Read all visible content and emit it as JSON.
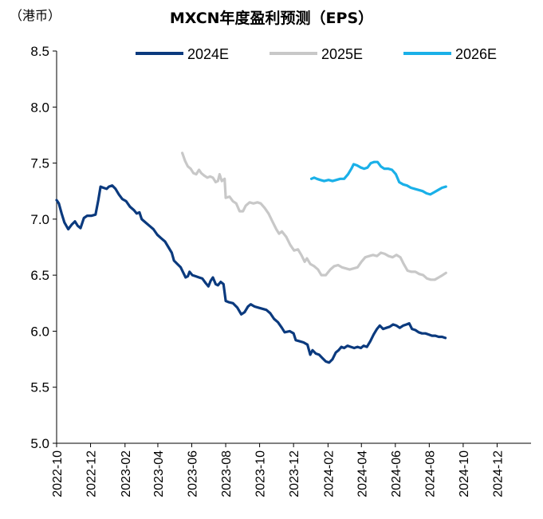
{
  "unit_label": "（港币）",
  "chart_data": {
    "type": "line",
    "title": "MXCN年度盈利预测（EPS）",
    "xlabel": "",
    "ylabel": "（港币）",
    "ylim": [
      5.0,
      8.5
    ],
    "yticks": [
      "5.0",
      "5.5",
      "6.0",
      "6.5",
      "7.0",
      "7.5",
      "8.0",
      "8.5"
    ],
    "xlim": [
      "2022-10",
      "2025-01-31"
    ],
    "xticks": [
      "2022-10",
      "2022-12",
      "2023-02",
      "2023-04",
      "2023-06",
      "2023-08",
      "2023-10",
      "2023-12",
      "2024-02",
      "2024-04",
      "2024-06",
      "2024-08",
      "2024-10",
      "2024-12"
    ],
    "grid": false,
    "legend": "top",
    "series": [
      {
        "name": "2024E",
        "color": "#0b3a7e",
        "points": [
          [
            "2022-10-01",
            7.17
          ],
          [
            "2022-10-05",
            7.14
          ],
          [
            "2022-10-10",
            7.05
          ],
          [
            "2022-10-15",
            6.97
          ],
          [
            "2022-10-22",
            6.91
          ],
          [
            "2022-10-28",
            6.95
          ],
          [
            "2022-11-03",
            6.98
          ],
          [
            "2022-11-08",
            6.94
          ],
          [
            "2022-11-13",
            6.92
          ],
          [
            "2022-11-19",
            7.01
          ],
          [
            "2022-11-25",
            7.03
          ],
          [
            "2022-12-03",
            7.03
          ],
          [
            "2022-12-10",
            7.04
          ],
          [
            "2022-12-15",
            7.17
          ],
          [
            "2022-12-19",
            7.29
          ],
          [
            "2022-12-24",
            7.28
          ],
          [
            "2022-12-30",
            7.27
          ],
          [
            "2023-01-03",
            7.29
          ],
          [
            "2023-01-09",
            7.3
          ],
          [
            "2023-01-15",
            7.27
          ],
          [
            "2023-01-21",
            7.22
          ],
          [
            "2023-01-27",
            7.18
          ],
          [
            "2023-02-03",
            7.16
          ],
          [
            "2023-02-10",
            7.11
          ],
          [
            "2023-02-17",
            7.08
          ],
          [
            "2023-02-22",
            7.05
          ],
          [
            "2023-02-27",
            7.06
          ],
          [
            "2023-03-03",
            7.0
          ],
          [
            "2023-03-10",
            6.97
          ],
          [
            "2023-03-17",
            6.94
          ],
          [
            "2023-03-24",
            6.91
          ],
          [
            "2023-03-31",
            6.86
          ],
          [
            "2023-04-07",
            6.83
          ],
          [
            "2023-04-14",
            6.8
          ],
          [
            "2023-04-20",
            6.75
          ],
          [
            "2023-04-26",
            6.7
          ],
          [
            "2023-04-30",
            6.63
          ],
          [
            "2023-05-06",
            6.6
          ],
          [
            "2023-05-12",
            6.57
          ],
          [
            "2023-05-17",
            6.52
          ],
          [
            "2023-05-21",
            6.48
          ],
          [
            "2023-05-25",
            6.49
          ],
          [
            "2023-05-28",
            6.53
          ],
          [
            "2023-06-02",
            6.5
          ],
          [
            "2023-06-08",
            6.49
          ],
          [
            "2023-06-14",
            6.48
          ],
          [
            "2023-06-20",
            6.47
          ],
          [
            "2023-06-26",
            6.43
          ],
          [
            "2023-07-01",
            6.4
          ],
          [
            "2023-07-05",
            6.45
          ],
          [
            "2023-07-09",
            6.48
          ],
          [
            "2023-07-14",
            6.42
          ],
          [
            "2023-07-18",
            6.41
          ],
          [
            "2023-07-23",
            6.44
          ],
          [
            "2023-07-28",
            6.42
          ],
          [
            "2023-08-01",
            6.27
          ],
          [
            "2023-08-06",
            6.26
          ],
          [
            "2023-08-14",
            6.25
          ],
          [
            "2023-08-22",
            6.21
          ],
          [
            "2023-08-29",
            6.15
          ],
          [
            "2023-09-04",
            6.17
          ],
          [
            "2023-09-10",
            6.22
          ],
          [
            "2023-09-15",
            6.24
          ],
          [
            "2023-09-22",
            6.22
          ],
          [
            "2023-09-29",
            6.21
          ],
          [
            "2023-10-06",
            6.2
          ],
          [
            "2023-10-13",
            6.19
          ],
          [
            "2023-10-20",
            6.16
          ],
          [
            "2023-10-27",
            6.11
          ],
          [
            "2023-11-03",
            6.08
          ],
          [
            "2023-11-10",
            6.03
          ],
          [
            "2023-11-15",
            5.99
          ],
          [
            "2023-11-24",
            6.0
          ],
          [
            "2023-12-01",
            5.98
          ],
          [
            "2023-12-05",
            5.92
          ],
          [
            "2023-12-12",
            5.91
          ],
          [
            "2023-12-19",
            5.9
          ],
          [
            "2023-12-26",
            5.88
          ],
          [
            "2023-12-31",
            5.79
          ],
          [
            "2024-01-04",
            5.83
          ],
          [
            "2024-01-10",
            5.8
          ],
          [
            "2024-01-16",
            5.79
          ],
          [
            "2024-01-22",
            5.76
          ],
          [
            "2024-01-28",
            5.73
          ],
          [
            "2024-02-03",
            5.72
          ],
          [
            "2024-02-09",
            5.75
          ],
          [
            "2024-02-15",
            5.81
          ],
          [
            "2024-02-20",
            5.83
          ],
          [
            "2024-02-25",
            5.86
          ],
          [
            "2024-03-01",
            5.85
          ],
          [
            "2024-03-07",
            5.87
          ],
          [
            "2024-03-13",
            5.86
          ],
          [
            "2024-03-19",
            5.85
          ],
          [
            "2024-03-25",
            5.86
          ],
          [
            "2024-03-31",
            5.85
          ],
          [
            "2024-04-05",
            5.87
          ],
          [
            "2024-04-11",
            5.86
          ],
          [
            "2024-04-17",
            5.91
          ],
          [
            "2024-04-23",
            5.97
          ],
          [
            "2024-04-29",
            6.02
          ],
          [
            "2024-05-04",
            6.05
          ],
          [
            "2024-05-10",
            6.02
          ],
          [
            "2024-05-16",
            6.03
          ],
          [
            "2024-05-22",
            6.04
          ],
          [
            "2024-05-28",
            6.06
          ],
          [
            "2024-06-03",
            6.05
          ],
          [
            "2024-06-09",
            6.03
          ],
          [
            "2024-06-15",
            6.05
          ],
          [
            "2024-06-21",
            6.06
          ],
          [
            "2024-06-26",
            6.07
          ],
          [
            "2024-07-01",
            6.02
          ],
          [
            "2024-07-07",
            6.01
          ],
          [
            "2024-07-13",
            5.99
          ],
          [
            "2024-07-19",
            5.98
          ],
          [
            "2024-07-25",
            5.98
          ],
          [
            "2024-07-31",
            5.97
          ],
          [
            "2024-08-06",
            5.96
          ],
          [
            "2024-08-12",
            5.96
          ],
          [
            "2024-08-18",
            5.95
          ],
          [
            "2024-08-24",
            5.95
          ],
          [
            "2024-08-30",
            5.94
          ]
        ]
      },
      {
        "name": "2025E",
        "color": "#c8c8c8",
        "points": [
          [
            "2023-05-15",
            7.59
          ],
          [
            "2023-05-20",
            7.52
          ],
          [
            "2023-05-25",
            7.47
          ],
          [
            "2023-05-30",
            7.45
          ],
          [
            "2023-06-04",
            7.41
          ],
          [
            "2023-06-09",
            7.4
          ],
          [
            "2023-06-14",
            7.44
          ],
          [
            "2023-06-18",
            7.41
          ],
          [
            "2023-06-23",
            7.39
          ],
          [
            "2023-06-29",
            7.37
          ],
          [
            "2023-07-04",
            7.38
          ],
          [
            "2023-07-09",
            7.37
          ],
          [
            "2023-07-14",
            7.33
          ],
          [
            "2023-07-18",
            7.34
          ],
          [
            "2023-07-21",
            7.4
          ],
          [
            "2023-07-25",
            7.34
          ],
          [
            "2023-07-30",
            7.36
          ],
          [
            "2023-08-01",
            7.19
          ],
          [
            "2023-08-08",
            7.2
          ],
          [
            "2023-08-14",
            7.16
          ],
          [
            "2023-08-20",
            7.14
          ],
          [
            "2023-08-26",
            7.07
          ],
          [
            "2023-09-01",
            7.07
          ],
          [
            "2023-09-06",
            7.12
          ],
          [
            "2023-09-13",
            7.15
          ],
          [
            "2023-09-20",
            7.14
          ],
          [
            "2023-09-27",
            7.15
          ],
          [
            "2023-10-03",
            7.14
          ],
          [
            "2023-10-10",
            7.1
          ],
          [
            "2023-10-17",
            7.05
          ],
          [
            "2023-10-24",
            6.98
          ],
          [
            "2023-10-31",
            6.91
          ],
          [
            "2023-11-05",
            6.87
          ],
          [
            "2023-11-10",
            6.89
          ],
          [
            "2023-11-18",
            6.84
          ],
          [
            "2023-11-25",
            6.77
          ],
          [
            "2023-12-02",
            6.72
          ],
          [
            "2023-12-09",
            6.73
          ],
          [
            "2023-12-15",
            6.68
          ],
          [
            "2023-12-21",
            6.62
          ],
          [
            "2023-12-25",
            6.65
          ],
          [
            "2023-12-31",
            6.6
          ],
          [
            "2024-01-07",
            6.58
          ],
          [
            "2024-01-14",
            6.55
          ],
          [
            "2024-01-20",
            6.5
          ],
          [
            "2024-01-28",
            6.5
          ],
          [
            "2024-02-05",
            6.55
          ],
          [
            "2024-02-12",
            6.58
          ],
          [
            "2024-02-19",
            6.59
          ],
          [
            "2024-02-26",
            6.57
          ],
          [
            "2024-03-04",
            6.56
          ],
          [
            "2024-03-11",
            6.55
          ],
          [
            "2024-03-18",
            6.56
          ],
          [
            "2024-03-25",
            6.57
          ],
          [
            "2024-04-01",
            6.62
          ],
          [
            "2024-04-08",
            6.66
          ],
          [
            "2024-04-15",
            6.67
          ],
          [
            "2024-04-22",
            6.68
          ],
          [
            "2024-04-29",
            6.67
          ],
          [
            "2024-05-06",
            6.7
          ],
          [
            "2024-05-13",
            6.69
          ],
          [
            "2024-05-20",
            6.67
          ],
          [
            "2024-05-27",
            6.66
          ],
          [
            "2024-06-03",
            6.68
          ],
          [
            "2024-06-10",
            6.66
          ],
          [
            "2024-06-16",
            6.6
          ],
          [
            "2024-06-23",
            6.54
          ],
          [
            "2024-06-30",
            6.53
          ],
          [
            "2024-07-07",
            6.53
          ],
          [
            "2024-07-14",
            6.51
          ],
          [
            "2024-07-21",
            6.5
          ],
          [
            "2024-07-28",
            6.47
          ],
          [
            "2024-08-04",
            6.46
          ],
          [
            "2024-08-11",
            6.46
          ],
          [
            "2024-08-18",
            6.48
          ],
          [
            "2024-08-25",
            6.5
          ],
          [
            "2024-08-31",
            6.52
          ]
        ]
      },
      {
        "name": "2026E",
        "color": "#1ab0e8",
        "points": [
          [
            "2024-01-02",
            7.36
          ],
          [
            "2024-01-07",
            7.37
          ],
          [
            "2024-01-12",
            7.36
          ],
          [
            "2024-01-18",
            7.35
          ],
          [
            "2024-01-25",
            7.34
          ],
          [
            "2024-02-02",
            7.35
          ],
          [
            "2024-02-09",
            7.34
          ],
          [
            "2024-02-16",
            7.35
          ],
          [
            "2024-02-23",
            7.36
          ],
          [
            "2024-03-01",
            7.36
          ],
          [
            "2024-03-08",
            7.4
          ],
          [
            "2024-03-14",
            7.45
          ],
          [
            "2024-03-18",
            7.49
          ],
          [
            "2024-03-24",
            7.48
          ],
          [
            "2024-03-31",
            7.46
          ],
          [
            "2024-04-06",
            7.45
          ],
          [
            "2024-04-12",
            7.46
          ],
          [
            "2024-04-18",
            7.5
          ],
          [
            "2024-04-24",
            7.51
          ],
          [
            "2024-04-30",
            7.51
          ],
          [
            "2024-05-06",
            7.47
          ],
          [
            "2024-05-12",
            7.45
          ],
          [
            "2024-05-19",
            7.45
          ],
          [
            "2024-05-26",
            7.44
          ],
          [
            "2024-06-02",
            7.4
          ],
          [
            "2024-06-08",
            7.33
          ],
          [
            "2024-06-15",
            7.31
          ],
          [
            "2024-06-22",
            7.3
          ],
          [
            "2024-06-29",
            7.28
          ],
          [
            "2024-07-06",
            7.27
          ],
          [
            "2024-07-13",
            7.26
          ],
          [
            "2024-07-20",
            7.25
          ],
          [
            "2024-07-27",
            7.23
          ],
          [
            "2024-08-03",
            7.22
          ],
          [
            "2024-08-10",
            7.24
          ],
          [
            "2024-08-17",
            7.26
          ],
          [
            "2024-08-24",
            7.28
          ],
          [
            "2024-08-31",
            7.29
          ]
        ]
      }
    ]
  }
}
